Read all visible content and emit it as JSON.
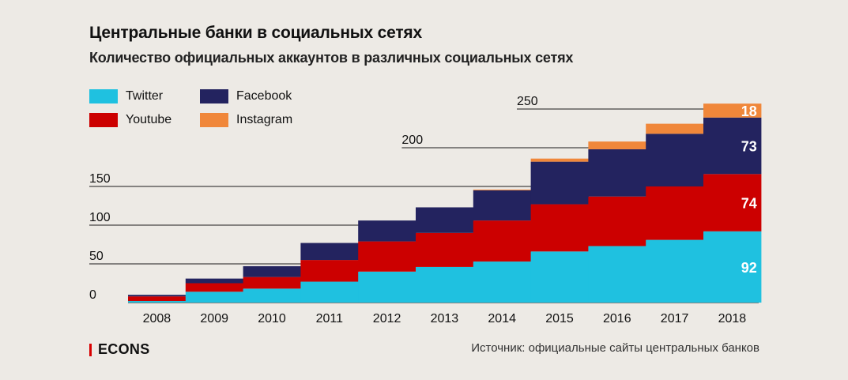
{
  "header": {
    "title": "Центральные банки в социальных сетях",
    "subtitle": "Количество официальных аккаунтов в различных социальных сетях"
  },
  "legend": [
    {
      "label": "Twitter",
      "color": "#1fc1e0"
    },
    {
      "label": "Facebook",
      "color": "#23235f"
    },
    {
      "label": "Youtube",
      "color": "#cc0000"
    },
    {
      "label": "Instagram",
      "color": "#f0873a"
    }
  ],
  "footer": {
    "brand": "ECONS",
    "source": "Источник: официальные сайты центральных банков"
  },
  "chart_data": {
    "type": "bar",
    "stacked": true,
    "categories": [
      "2008",
      "2009",
      "2010",
      "2011",
      "2012",
      "2013",
      "2014",
      "2015",
      "2016",
      "2017",
      "2018"
    ],
    "series": [
      {
        "name": "Twitter",
        "color": "#1fc1e0",
        "values": [
          2,
          14,
          18,
          27,
          40,
          46,
          53,
          66,
          73,
          81,
          92
        ]
      },
      {
        "name": "Youtube",
        "color": "#cc0000",
        "values": [
          6,
          11,
          15,
          28,
          39,
          44,
          53,
          61,
          64,
          69,
          74
        ]
      },
      {
        "name": "Facebook",
        "color": "#23235f",
        "values": [
          2,
          6,
          14,
          22,
          27,
          33,
          39,
          55,
          61,
          68,
          73
        ]
      },
      {
        "name": "Instagram",
        "color": "#f0873a",
        "values": [
          0,
          0,
          0,
          0,
          0,
          0,
          1,
          4,
          10,
          13,
          18
        ]
      }
    ],
    "yticks": [
      0,
      50,
      100,
      150,
      200,
      250
    ],
    "ylim": [
      0,
      260
    ],
    "data_labels": [
      {
        "category": "2018",
        "series": "Twitter",
        "text": "92"
      },
      {
        "category": "2018",
        "series": "Youtube",
        "text": "74"
      },
      {
        "category": "2018",
        "series": "Facebook",
        "text": "73"
      },
      {
        "category": "2018",
        "series": "Instagram",
        "text": "18"
      }
    ],
    "grid": true,
    "legend_position": "top-left"
  }
}
